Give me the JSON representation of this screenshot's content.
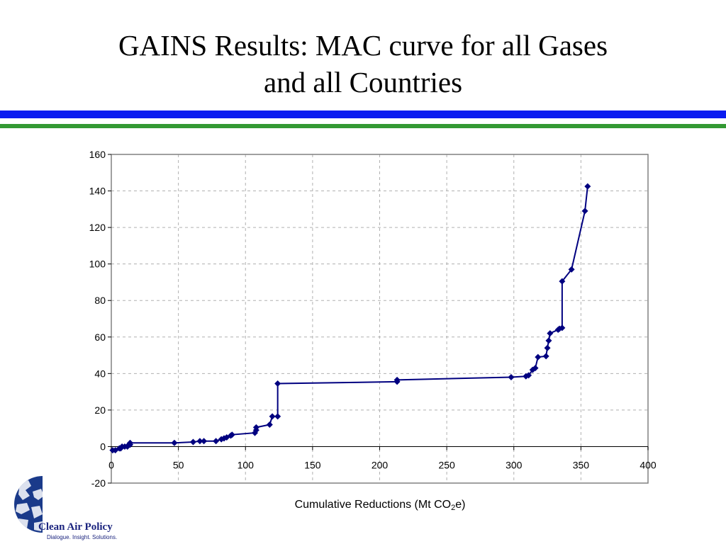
{
  "slide": {
    "title_line1": "GAINS Results: MAC curve for all Gases",
    "title_line2": "and all Countries"
  },
  "logo": {
    "name": "Clean Air Policy",
    "tagline": "Dialogue. Insight. Solutions.",
    "color": "#1a237e"
  },
  "colors": {
    "rule_blue": "#0a1cf0",
    "rule_green": "#339933",
    "series_line": "#000080"
  },
  "chart_data": {
    "type": "line",
    "title": "",
    "xlabel": "Cumulative Reductions (Mt CO",
    "xlabel_subscript": "2",
    "xlabel_suffix": "e)",
    "ylabel": "",
    "xlim": [
      0,
      400
    ],
    "ylim": [
      -20,
      160
    ],
    "xticks": [
      0,
      50,
      100,
      150,
      200,
      250,
      300,
      350,
      400
    ],
    "yticks": [
      -20,
      0,
      20,
      40,
      60,
      80,
      100,
      120,
      140,
      160
    ],
    "grid": true,
    "legend": "none",
    "marker": "diamond",
    "series": [
      {
        "x": [
          1,
          3,
          6,
          7,
          8,
          10,
          12,
          13,
          14,
          14,
          47,
          61,
          66,
          69,
          78,
          82,
          84,
          86,
          89,
          90,
          107,
          108,
          108,
          118,
          120,
          124,
          124,
          213,
          213,
          298,
          309,
          311,
          314,
          316,
          318,
          324,
          325,
          326,
          327,
          333,
          334,
          336,
          336,
          343,
          353,
          355
        ],
        "y": [
          -2,
          -2,
          -1,
          -1,
          0,
          0,
          0,
          1,
          1,
          2,
          2,
          2.5,
          3,
          3,
          3,
          4,
          4.5,
          5,
          6,
          6.5,
          7.5,
          9,
          10.5,
          12,
          16.5,
          16.5,
          34.5,
          35.5,
          36.5,
          38,
          38.5,
          39,
          42,
          43,
          49,
          49.5,
          54,
          58,
          62,
          64,
          64.5,
          65,
          90.5,
          97,
          129,
          142.5
        ]
      }
    ]
  }
}
